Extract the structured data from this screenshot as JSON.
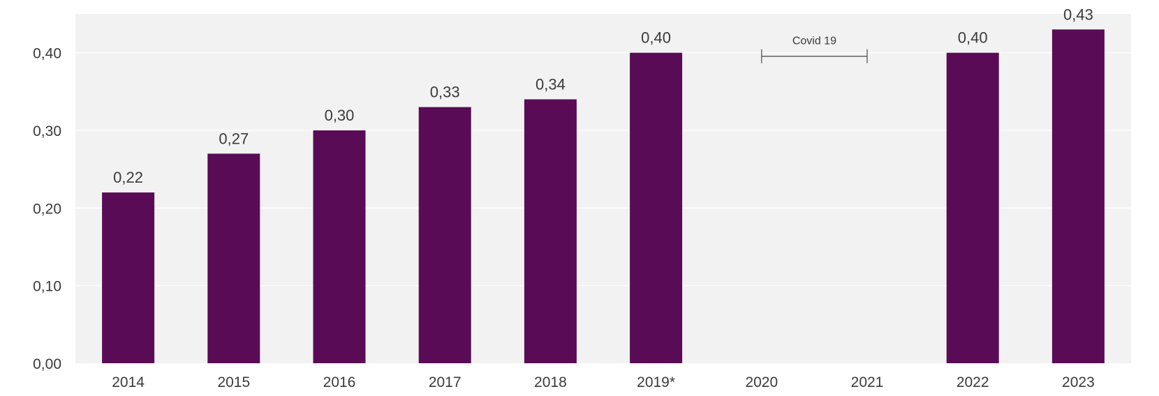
{
  "chart_data": {
    "type": "bar",
    "categories": [
      "2014",
      "2015",
      "2016",
      "2017",
      "2018",
      "2019*",
      "2020",
      "2021",
      "2022",
      "2023"
    ],
    "values": [
      0.22,
      0.27,
      0.3,
      0.33,
      0.34,
      0.4,
      null,
      null,
      0.4,
      0.43
    ],
    "value_labels": [
      "0,22",
      "0,27",
      "0,30",
      "0,33",
      "0,34",
      "0,40",
      "",
      "",
      "0,40",
      "0,43"
    ],
    "y_ticks": [
      {
        "value": 0.0,
        "label": "0,00"
      },
      {
        "value": 0.1,
        "label": "0,10"
      },
      {
        "value": 0.2,
        "label": "0,20"
      },
      {
        "value": 0.3,
        "label": "0,30"
      },
      {
        "value": 0.4,
        "label": "0,40"
      }
    ],
    "ylim": [
      0,
      0.45
    ],
    "grid": true,
    "title": "",
    "xlabel": "",
    "ylabel": "",
    "annotations": [
      {
        "text": "Covid 19",
        "span": [
          "2020",
          "2021"
        ],
        "y": 0.4
      }
    ],
    "colors": {
      "bar": "#590c55",
      "plot_background": "#f2f2f2",
      "grid": "#ffffff",
      "text": "#3a3a3a",
      "annotation_line": "#555555"
    }
  }
}
